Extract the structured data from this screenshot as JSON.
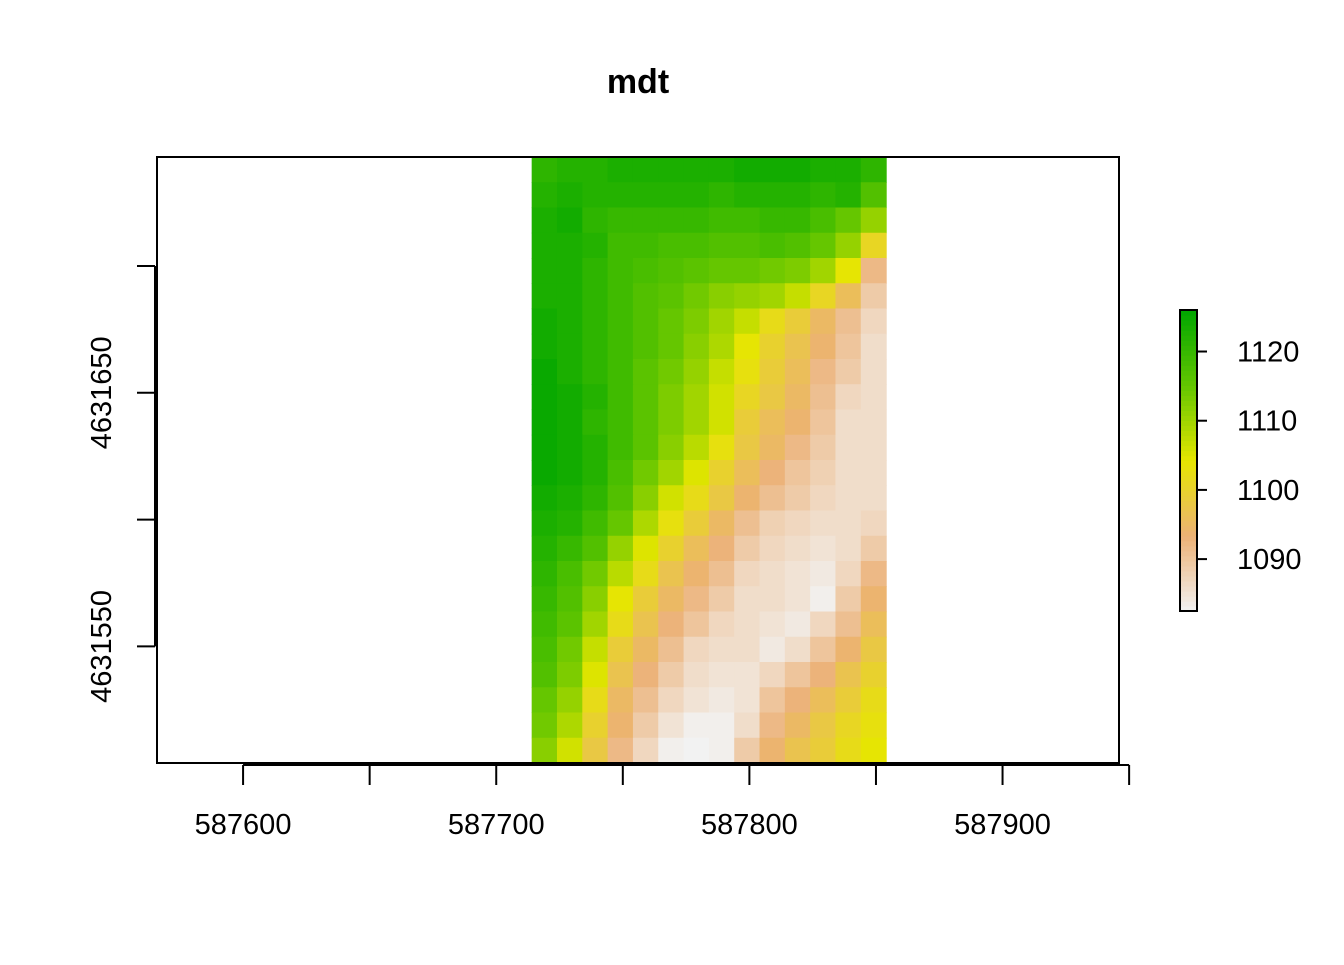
{
  "chart_data": {
    "type": "heatmap",
    "title": "mdt",
    "xlabel": "",
    "ylabel": "",
    "xlim": [
      587566,
      587946
    ],
    "ylim": [
      4631504,
      4631743
    ],
    "x_ticks": [
      587600,
      587650,
      587700,
      587750,
      587800,
      587850,
      587900,
      587950
    ],
    "x_tick_labels": [
      "587600",
      "",
      "587700",
      "",
      "587800",
      "",
      "587900",
      ""
    ],
    "y_ticks": [
      4631550,
      4631600,
      4631650,
      4631700
    ],
    "y_tick_labels": [
      "4631550",
      "",
      "4631650",
      ""
    ],
    "raster_extent": {
      "xmin": 587714,
      "xmax": 587854,
      "ymin": 4631504,
      "ymax": 4631743
    },
    "grid": false,
    "legend": {
      "placement": "right",
      "min": 1082.5,
      "max": 1126,
      "ticks": [
        1090,
        1100,
        1110,
        1120
      ],
      "tick_labels": [
        "1090",
        "1100",
        "1110",
        "1120"
      ]
    },
    "colors": {
      "low": "#f2f2f2",
      "stops": [
        "#f2f2f2",
        "#ecb176",
        "#e6e600",
        "#63c600",
        "#00a600"
      ]
    },
    "values": [
      [
        1121,
        1122,
        1122,
        1123,
        1123,
        1123,
        1123,
        1123,
        1124,
        1124,
        1124,
        1123,
        1123,
        1121
      ],
      [
        1122,
        1123,
        1122,
        1122,
        1122,
        1122,
        1122,
        1121,
        1122,
        1122,
        1122,
        1121,
        1122,
        1117
      ],
      [
        1123,
        1124,
        1121,
        1120,
        1120,
        1120,
        1120,
        1119,
        1119,
        1120,
        1120,
        1118,
        1115,
        1111
      ],
      [
        1123,
        1123,
        1122,
        1119,
        1119,
        1118,
        1118,
        1117,
        1117,
        1118,
        1117,
        1115,
        1111,
        1101
      ],
      [
        1123,
        1123,
        1121,
        1119,
        1118,
        1117,
        1116,
        1115,
        1115,
        1114,
        1113,
        1110,
        1104,
        1092
      ],
      [
        1123,
        1123,
        1121,
        1119,
        1117,
        1116,
        1114,
        1112,
        1111,
        1110,
        1107,
        1101,
        1096,
        1089
      ],
      [
        1124,
        1123,
        1121,
        1119,
        1117,
        1115,
        1113,
        1110,
        1107,
        1102,
        1099,
        1095,
        1091,
        1087
      ],
      [
        1124,
        1123,
        1121,
        1119,
        1117,
        1115,
        1112,
        1109,
        1104,
        1100,
        1097,
        1094,
        1090,
        1086
      ],
      [
        1125,
        1123,
        1121,
        1119,
        1116,
        1114,
        1111,
        1107,
        1103,
        1099,
        1096,
        1092,
        1089,
        1086
      ],
      [
        1125,
        1124,
        1122,
        1119,
        1116,
        1113,
        1110,
        1106,
        1101,
        1098,
        1095,
        1091,
        1087,
        1086
      ],
      [
        1125,
        1124,
        1121,
        1119,
        1116,
        1113,
        1110,
        1106,
        1099,
        1096,
        1094,
        1090,
        1086,
        1086
      ],
      [
        1125,
        1124,
        1122,
        1119,
        1116,
        1112,
        1108,
        1103,
        1098,
        1095,
        1092,
        1089,
        1086,
        1086
      ],
      [
        1125,
        1124,
        1122,
        1118,
        1114,
        1110,
        1105,
        1100,
        1096,
        1093,
        1090,
        1088,
        1086,
        1086
      ],
      [
        1124,
        1123,
        1121,
        1117,
        1112,
        1106,
        1102,
        1098,
        1094,
        1091,
        1089,
        1087,
        1086,
        1086
      ],
      [
        1123,
        1122,
        1119,
        1115,
        1109,
        1103,
        1099,
        1095,
        1091,
        1088,
        1087,
        1086,
        1086,
        1087
      ],
      [
        1122,
        1120,
        1117,
        1111,
        1105,
        1100,
        1096,
        1093,
        1089,
        1087,
        1086,
        1085,
        1086,
        1089
      ],
      [
        1121,
        1118,
        1114,
        1108,
        1102,
        1097,
        1094,
        1091,
        1087,
        1086,
        1085,
        1084,
        1087,
        1092
      ],
      [
        1120,
        1117,
        1112,
        1104,
        1099,
        1095,
        1092,
        1089,
        1086,
        1086,
        1085,
        1083,
        1089,
        1094
      ],
      [
        1119,
        1116,
        1110,
        1102,
        1097,
        1093,
        1090,
        1087,
        1086,
        1085,
        1084,
        1087,
        1091,
        1096
      ],
      [
        1118,
        1114,
        1107,
        1099,
        1095,
        1091,
        1087,
        1086,
        1086,
        1084,
        1086,
        1090,
        1094,
        1098
      ],
      [
        1117,
        1113,
        1105,
        1097,
        1093,
        1089,
        1086,
        1085,
        1085,
        1087,
        1090,
        1093,
        1097,
        1100
      ],
      [
        1115,
        1111,
        1102,
        1095,
        1091,
        1087,
        1085,
        1084,
        1085,
        1090,
        1093,
        1096,
        1099,
        1102
      ],
      [
        1114,
        1109,
        1100,
        1094,
        1089,
        1085,
        1083,
        1083,
        1086,
        1092,
        1095,
        1098,
        1101,
        1103
      ],
      [
        1112,
        1106,
        1098,
        1092,
        1087,
        1083,
        1082,
        1083,
        1089,
        1094,
        1097,
        1099,
        1102,
        1104
      ]
    ]
  }
}
